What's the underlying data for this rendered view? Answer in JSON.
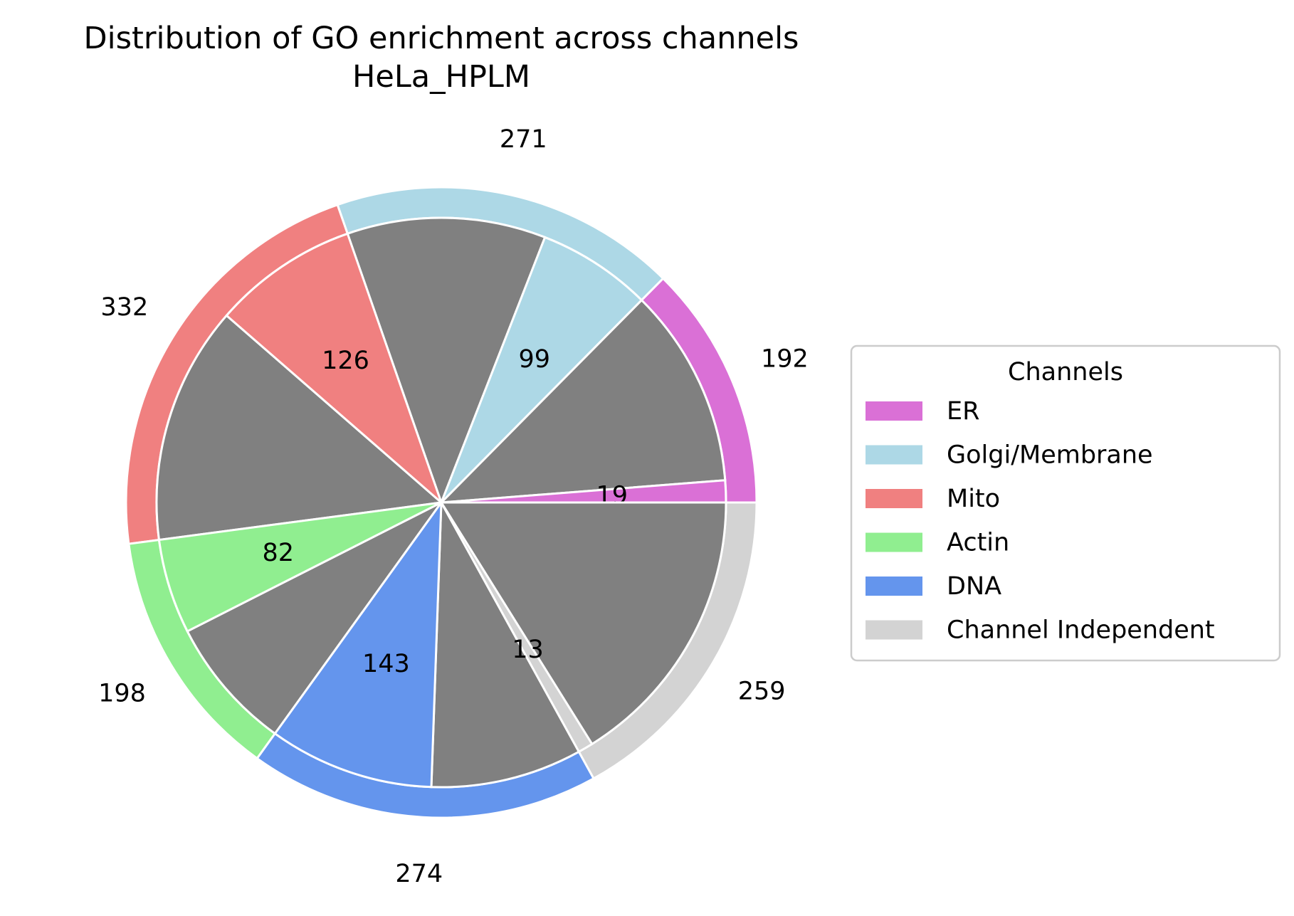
{
  "chart_data": {
    "type": "pie",
    "title": "Distribution of GO enrichment across channels",
    "subtitle": "HeLa_HPLM",
    "legend": {
      "title": "Channels",
      "placement": "right"
    },
    "other_color": "#808080",
    "categories": [
      "ER",
      "Golgi/Membrane",
      "Mito",
      "Actin",
      "DNA",
      "Channel Independent"
    ],
    "outer_values": [
      192,
      271,
      332,
      198,
      274,
      259
    ],
    "inner_values": [
      19,
      99,
      126,
      82,
      143,
      13
    ],
    "colors": [
      "#da70d6",
      "#add8e6",
      "#f08080",
      "#90ee90",
      "#6495ed",
      "#d3d3d3"
    ],
    "outer_labels": [
      "192",
      "271",
      "332",
      "198",
      "274",
      "259"
    ],
    "inner_labels": [
      "19",
      "99",
      "126",
      "82",
      "143",
      "13"
    ]
  }
}
